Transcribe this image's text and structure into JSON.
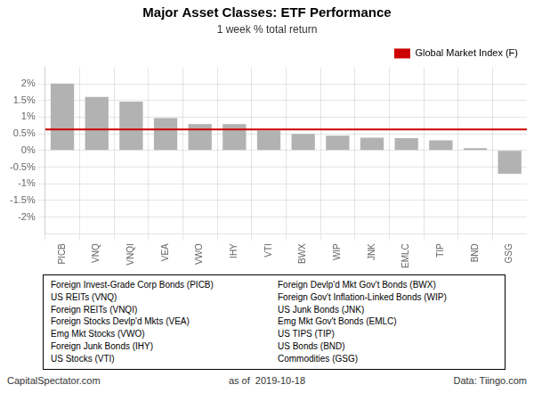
{
  "chart_data": {
    "type": "bar",
    "title": "Major Asset Classes: ETF Performance",
    "subtitle": "1 week % total return",
    "categories": [
      "PICB",
      "VNQ",
      "VNQI",
      "VEA",
      "VWO",
      "IHY",
      "VTI",
      "BWX",
      "WIP",
      "JNK",
      "EMLC",
      "TIP",
      "BND",
      "GSG"
    ],
    "values": [
      2.01,
      1.61,
      1.47,
      0.97,
      0.79,
      0.79,
      0.6,
      0.5,
      0.44,
      0.38,
      0.37,
      0.3,
      0.07,
      -0.7
    ],
    "color": "#b2b2b2",
    "ylim": [
      -2.5,
      2.5
    ],
    "yticks": [
      {
        "value": -2.0,
        "label": "-2%"
      },
      {
        "value": -1.5,
        "label": "-1.5%"
      },
      {
        "value": -1.0,
        "label": "-1%"
      },
      {
        "value": -0.5,
        "label": "-0.5%"
      },
      {
        "value": 0.0,
        "label": "0%"
      },
      {
        "value": 0.5,
        "label": "0.5%"
      },
      {
        "value": 1.0,
        "label": "1%"
      },
      {
        "value": 1.5,
        "label": "1.5%"
      },
      {
        "value": 2.0,
        "label": "2%"
      }
    ],
    "grid": true,
    "legend": "upper right",
    "reference_line": {
      "name": "Global Market Index (F)",
      "value": 0.63,
      "color": "#cc0000"
    },
    "annotations": {
      "key_columns": [
        [
          "Foreign Invest-Grade Corp Bonds (PICB)",
          "US REITs (VNQ)",
          "Foreign REITs (VNQI)",
          "Foreign Stocks Devlp'd Mkts (VEA)",
          "Emg Mkt Stocks (VWO)",
          "Foreign Junk Bonds (IHY)",
          "US Stocks (VTI)"
        ],
        [
          "Foreign Devlp'd Mkt Gov't Bonds (BWX)",
          "Foreign Gov't Inflation-Linked Bonds (WIP)",
          "US Junk Bonds (JNK)",
          "Emg Mkt Gov't Bonds (EMLC)",
          "US TIPS (TIP)",
          "US Bonds (BND)",
          "Commodities (GSG)"
        ]
      ],
      "footer": [
        "CapitalSpectator.com",
        "as of  2019-10-18",
        "Data: Tiingo.com"
      ]
    }
  }
}
